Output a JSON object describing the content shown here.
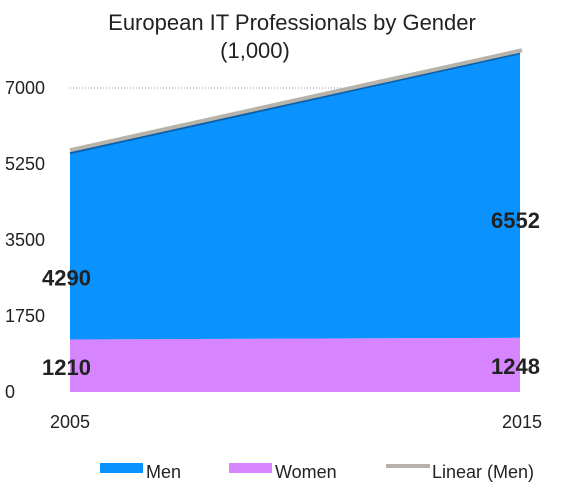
{
  "chart_data": {
    "type": "area",
    "title": "European IT Professionals by Gender",
    "subtitle": "(1,000)",
    "x": [
      "2005",
      "2015"
    ],
    "ylim": [
      0,
      7000
    ],
    "yticks": [
      "0",
      "1750",
      "3500",
      "5250",
      "7000"
    ],
    "grid": true,
    "stacked": true,
    "series": [
      {
        "name": "Men",
        "values": [
          4290,
          6552
        ],
        "color": "#0a93ff"
      },
      {
        "name": "Women",
        "values": [
          1210,
          1248
        ],
        "color": "#d685ff"
      }
    ],
    "trendline": {
      "name": "Linear (Men)",
      "color": "#b8b3aa"
    },
    "data_labels": {
      "men": [
        "4290",
        "6552"
      ],
      "women": [
        "1210",
        "1248"
      ]
    },
    "legend_position": "bottom"
  }
}
